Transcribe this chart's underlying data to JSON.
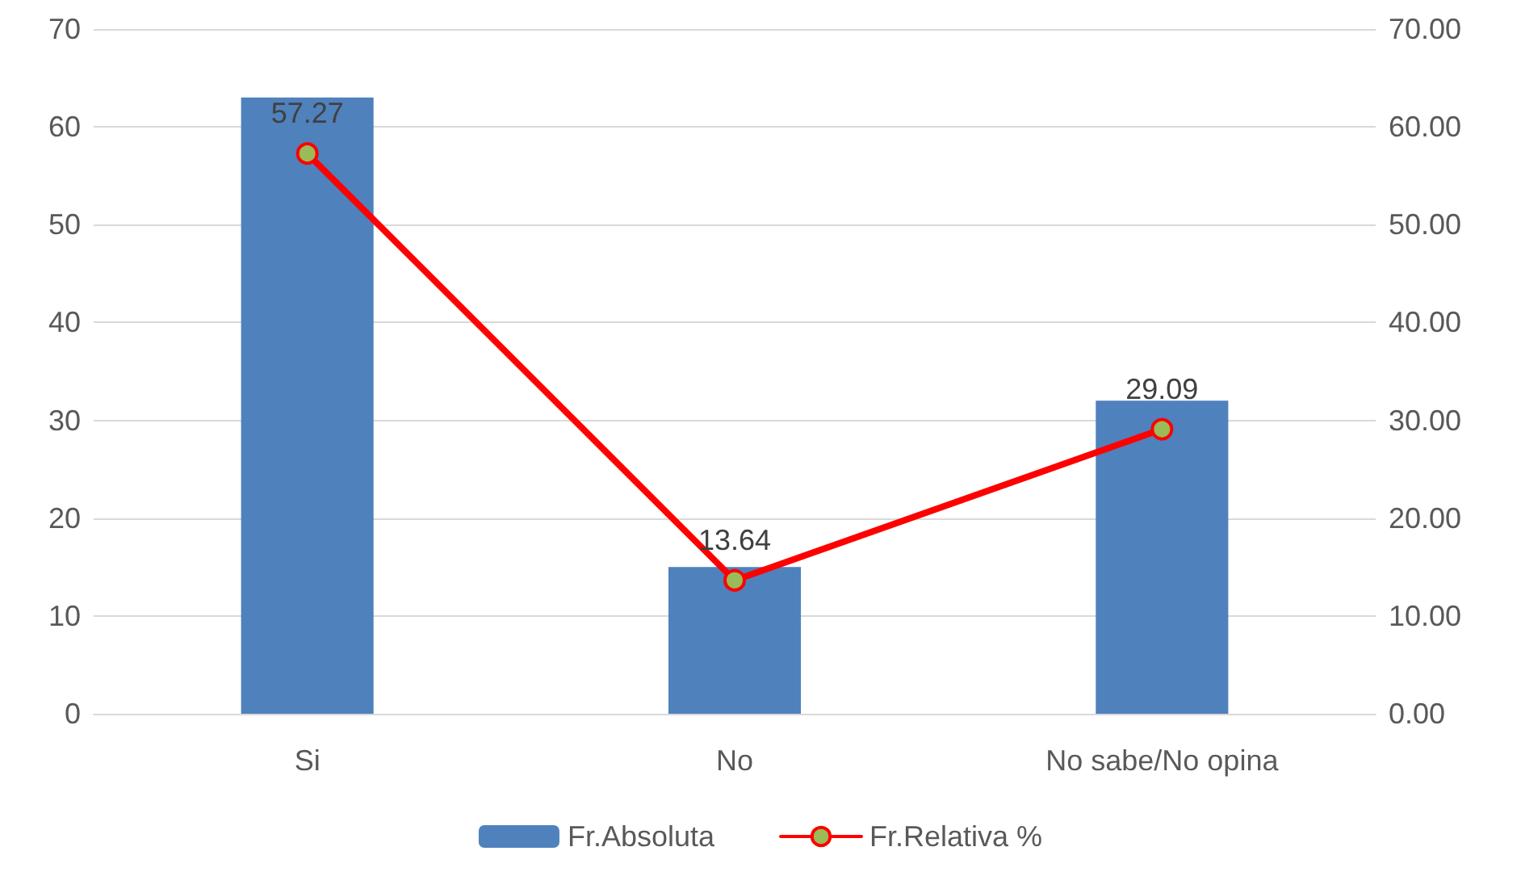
{
  "chart_data": {
    "type": "bar",
    "categories": [
      "Si",
      "No",
      "No sabe/No opina"
    ],
    "series": [
      {
        "name": "Fr.Absoluta",
        "color": "#4f81bd",
        "values": [
          63,
          15,
          32
        ]
      },
      {
        "name": "Fr.Relativa %",
        "type": "line",
        "color": "#ff0000",
        "axis": "y2",
        "marker": "circle",
        "data_labels": true,
        "values": [
          57.27,
          13.64,
          29.09
        ]
      }
    ],
    "ylim": [
      0,
      70
    ],
    "yticks": [
      0,
      10,
      20,
      30,
      40,
      50,
      60,
      70
    ],
    "y2lim": [
      0,
      70
    ],
    "y2ticks": [
      {
        "value": 0,
        "label": "0.00"
      },
      {
        "value": 10,
        "label": "10.00"
      },
      {
        "value": 20,
        "label": "20.00"
      },
      {
        "value": 30,
        "label": "30.00"
      },
      {
        "value": 40,
        "label": "40.00"
      },
      {
        "value": 50,
        "label": "50.00"
      },
      {
        "value": 60,
        "label": "60.00"
      },
      {
        "value": 70,
        "label": "70.00"
      }
    ],
    "grid": "y",
    "legend": "bottom"
  }
}
